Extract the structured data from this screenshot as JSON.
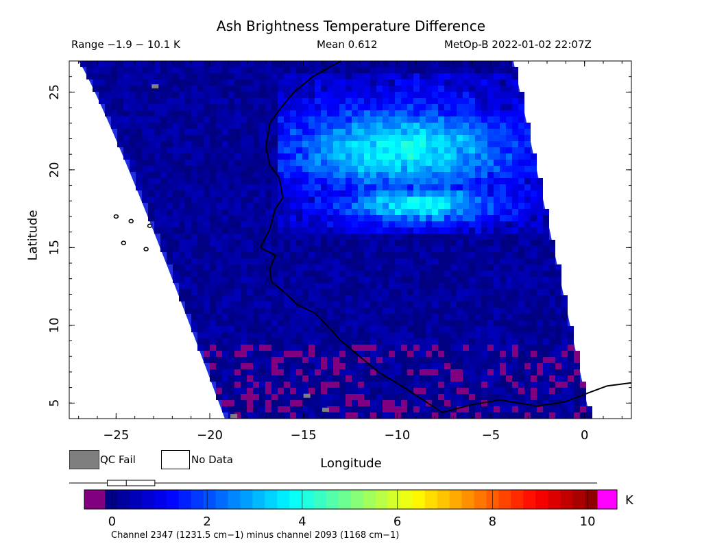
{
  "title": "Ash Brightness Temperature Difference",
  "subtitle": {
    "range": "Range −1.9 − 10.1 K",
    "mean": "Mean 0.612",
    "satellite_time": "MetOp-B 2022-01-02 22:07Z"
  },
  "axes": {
    "xlabel": "Longitude",
    "ylabel": "Latitude",
    "xlim": [
      -27.5,
      2.5
    ],
    "ylim": [
      4,
      27
    ],
    "xticks": [
      -25,
      -20,
      -15,
      -10,
      -5,
      0
    ],
    "xtick_labels": [
      "−25",
      "−20",
      "−15",
      "−10",
      "−5",
      "0"
    ],
    "yticks": [
      5,
      10,
      15,
      20,
      25
    ],
    "ytick_labels": [
      "5",
      "10",
      "15",
      "20",
      "25"
    ]
  },
  "legend": {
    "qc_fail": "QC Fail",
    "no_data": "No Data",
    "qc_color": "#7f7f7f"
  },
  "colorbar": {
    "unit": "K",
    "ticks": [
      0,
      2,
      4,
      6,
      8,
      10
    ],
    "tick_labels": [
      "0",
      "2",
      "4",
      "6",
      "8",
      "10"
    ],
    "range": [
      -1.0,
      10.6
    ],
    "under_color": "#800080",
    "over_color": "#ff00ff",
    "caption": "Channel 2347 (1231.5 cm−1) minus channel 2093 (1168 cm−1)",
    "boxplot": {
      "min": -1.9,
      "q1": -0.1,
      "median": 0.3,
      "q3": 0.9,
      "max": 10.1
    }
  },
  "swath": {
    "corners": [
      [
        -27.0,
        27.0
      ],
      [
        -16.0,
        27.0
      ],
      [
        -19.2,
        4.0
      ],
      [
        -5.0,
        4.0
      ],
      [
        -3.8,
        27.0
      ],
      [
        0.3,
        4.0
      ]
    ],
    "background_color": "#1e2ee0"
  },
  "ash_region": {
    "description_color": "#60e0e0"
  }
}
